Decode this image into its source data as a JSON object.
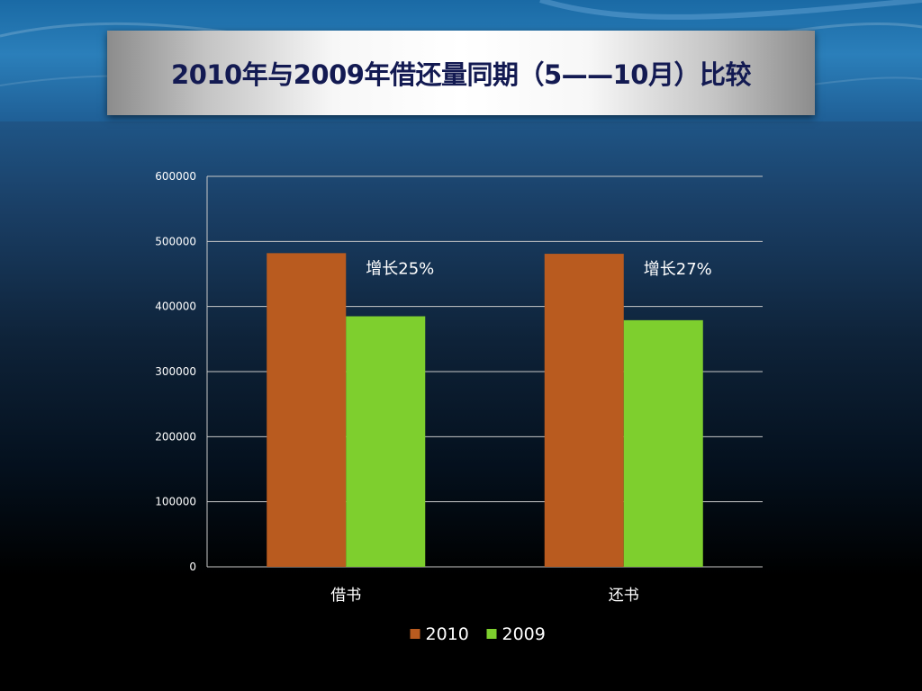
{
  "slide": {
    "title": "2010年与2009年借还量同期（5——10月）比较"
  },
  "colors": {
    "series_2010": "#b95b1f",
    "series_2009": "#7ecf2e",
    "title_text": "#131a52",
    "grid": "#c8c8c8"
  },
  "chart_data": {
    "type": "bar",
    "title": "",
    "xlabel": "",
    "ylabel": "",
    "categories": [
      "借书",
      "还书"
    ],
    "series": [
      {
        "name": "2010",
        "values": [
          482000,
          481000
        ]
      },
      {
        "name": "2009",
        "values": [
          385000,
          379000
        ]
      }
    ],
    "ylim": [
      0,
      600000
    ],
    "yticks": [
      0,
      100000,
      200000,
      300000,
      400000,
      500000,
      600000
    ],
    "grid": true,
    "legend": "bottom",
    "annotations": [
      "增长25%",
      "增长27%"
    ]
  }
}
